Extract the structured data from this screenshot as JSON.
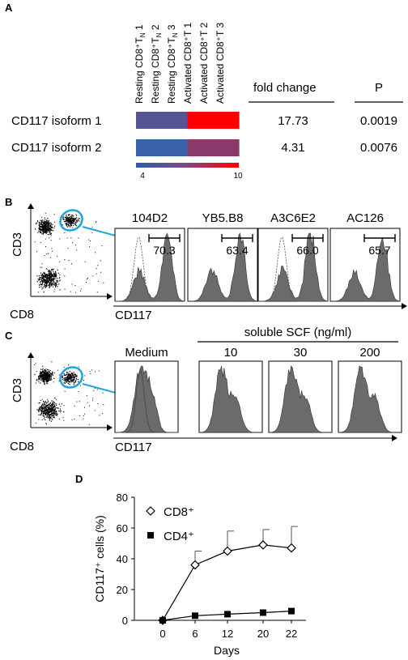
{
  "panel_a": {
    "label": "A",
    "columns": [
      "Resting CD8⁺T",
      "Resting CD8⁺T",
      "Resting CD8⁺T",
      "Activated CD8⁺T 1",
      "Activated CD8⁺T 2",
      "Activated CD8⁺T 3"
    ],
    "column_subscripts": [
      "N",
      "N",
      "N",
      "",
      "",
      ""
    ],
    "column_suffix": [
      " 1",
      " 2",
      " 3",
      "",
      "",
      ""
    ],
    "header_fold": "fold change",
    "header_p": "P",
    "rows": [
      {
        "name": "CD117 isoform 1",
        "fold": "17.73",
        "p": "0.0019",
        "values": [
          5,
          5,
          5,
          10,
          10,
          10
        ]
      },
      {
        "name": "CD117 isoform 2",
        "fold": "4.31",
        "p": "0.0076",
        "values": [
          4,
          4,
          4,
          7,
          7,
          7
        ]
      }
    ],
    "scale_min": "4",
    "scale_max": "10",
    "colors": {
      "low": "#3a62a8",
      "mid": "#8a3a6a",
      "high": "#ff0000"
    }
  },
  "panel_b": {
    "label": "B",
    "dot_y": "CD3",
    "dot_x": "CD8",
    "hist_x": "CD117",
    "clones": [
      {
        "name": "104D2",
        "value": "70.3"
      },
      {
        "name": "YB5.B8",
        "value": "63.4"
      },
      {
        "name": "A3C6E2",
        "value": "66.0"
      },
      {
        "name": "AC126",
        "value": "65.7"
      }
    ]
  },
  "panel_c": {
    "label": "C",
    "dot_y": "CD3",
    "dot_x": "CD8",
    "hist_x": "CD117",
    "group_label": "soluble SCF (ng/ml)",
    "conditions": [
      "Medium",
      "10",
      "30",
      "200"
    ]
  },
  "panel_d": {
    "label": "D",
    "chart_data": {
      "type": "line",
      "xlabel": "Days",
      "ylabel": "CD117⁺ cells (%)",
      "x": [
        0,
        6,
        12,
        20,
        22
      ],
      "xticks": [
        "0",
        "6",
        "12",
        "20",
        "22"
      ],
      "ylim": [
        0,
        80
      ],
      "yticks": [
        "0",
        "20",
        "40",
        "60",
        "80"
      ],
      "series": [
        {
          "name": "CD8⁺",
          "marker": "open-diamond",
          "values": [
            0,
            36,
            45,
            49,
            47
          ],
          "error": [
            0,
            9,
            13,
            10,
            14
          ]
        },
        {
          "name": "CD4⁺",
          "marker": "filled-square",
          "values": [
            0,
            3,
            4,
            5,
            6
          ],
          "error": [
            0,
            0,
            0,
            0,
            0
          ]
        }
      ]
    }
  }
}
